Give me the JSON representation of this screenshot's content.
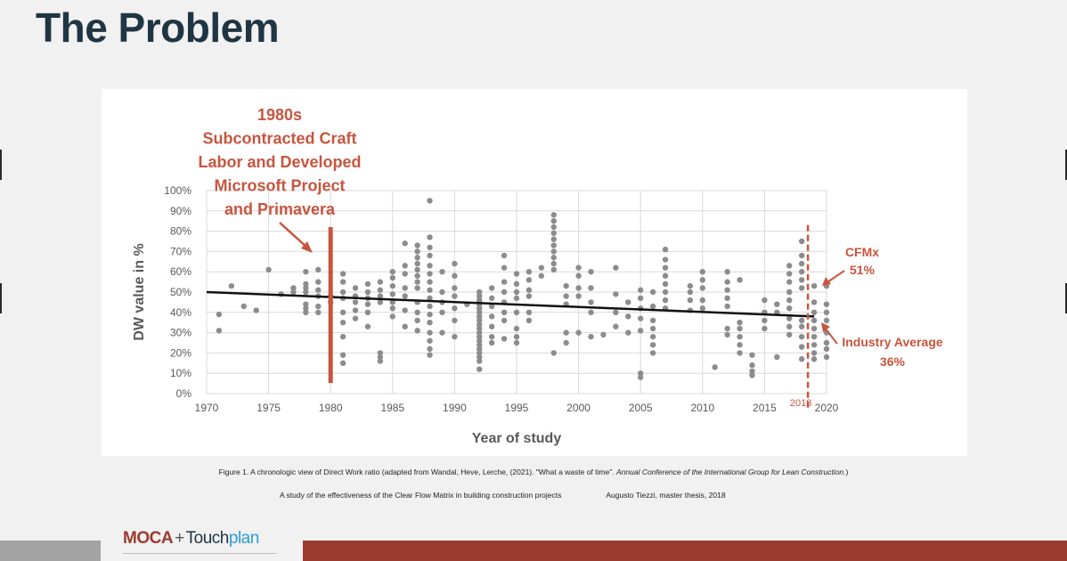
{
  "slide": {
    "title": "The Problem"
  },
  "chart_data": {
    "type": "scatter",
    "xlabel": "Year of study",
    "ylabel": "DW value in %",
    "xlim": [
      1970,
      2020
    ],
    "ylim": [
      0,
      100
    ],
    "x_ticks": [
      "1970",
      "1975",
      "1980",
      "1985",
      "1990",
      "1995",
      "2000",
      "2005",
      "2010",
      "2015",
      "2020"
    ],
    "y_ticks": [
      "0%",
      "10%",
      "20%",
      "30%",
      "40%",
      "50%",
      "60%",
      "70%",
      "80%",
      "90%",
      "100%"
    ],
    "grid": true,
    "colors": {
      "points": "#8c8c8c",
      "trend": "#111111",
      "annotation": "#c8553d"
    },
    "trendline": {
      "x": [
        1970,
        2019
      ],
      "y": [
        50,
        38
      ]
    },
    "vertical_lines": [
      {
        "x": 1980,
        "style": "solid"
      },
      {
        "x": 2018.5,
        "style": "dashed",
        "label": "2018"
      }
    ],
    "annotations": [
      {
        "lines": [
          "1980s",
          "Subcontracted Craft",
          "Labor and Developed",
          "Microsoft Project",
          "and Primavera"
        ]
      },
      {
        "lines": [
          "CFMx",
          "51%"
        ]
      },
      {
        "lines": [
          "Industry Average",
          "36%"
        ]
      }
    ],
    "points": [
      [
        1971,
        39
      ],
      [
        1971,
        31
      ],
      [
        1972,
        53
      ],
      [
        1973,
        43
      ],
      [
        1974,
        41
      ],
      [
        1975,
        61
      ],
      [
        1976,
        49
      ],
      [
        1977,
        50
      ],
      [
        1977,
        52
      ],
      [
        1978,
        60
      ],
      [
        1978,
        54
      ],
      [
        1978,
        52
      ],
      [
        1978,
        50
      ],
      [
        1978,
        44
      ],
      [
        1978,
        42
      ],
      [
        1978,
        40
      ],
      [
        1979,
        61
      ],
      [
        1979,
        55
      ],
      [
        1979,
        51
      ],
      [
        1979,
        48
      ],
      [
        1979,
        43
      ],
      [
        1979,
        40
      ],
      [
        1980,
        48
      ],
      [
        1980,
        45
      ],
      [
        1981,
        59
      ],
      [
        1981,
        55
      ],
      [
        1981,
        50
      ],
      [
        1981,
        47
      ],
      [
        1981,
        40
      ],
      [
        1981,
        35
      ],
      [
        1981,
        28
      ],
      [
        1981,
        19
      ],
      [
        1981,
        15
      ],
      [
        1982,
        52
      ],
      [
        1982,
        48
      ],
      [
        1982,
        45
      ],
      [
        1982,
        41
      ],
      [
        1982,
        37
      ],
      [
        1983,
        54
      ],
      [
        1983,
        50
      ],
      [
        1983,
        47
      ],
      [
        1983,
        44
      ],
      [
        1983,
        40
      ],
      [
        1983,
        33
      ],
      [
        1984,
        55
      ],
      [
        1984,
        51
      ],
      [
        1984,
        48
      ],
      [
        1984,
        45
      ],
      [
        1984,
        20
      ],
      [
        1984,
        18
      ],
      [
        1984,
        16
      ],
      [
        1985,
        60
      ],
      [
        1985,
        57
      ],
      [
        1985,
        53
      ],
      [
        1985,
        49
      ],
      [
        1985,
        45
      ],
      [
        1985,
        42
      ],
      [
        1985,
        38
      ],
      [
        1986,
        74
      ],
      [
        1986,
        63
      ],
      [
        1986,
        59
      ],
      [
        1986,
        52
      ],
      [
        1986,
        48
      ],
      [
        1986,
        41
      ],
      [
        1986,
        33
      ],
      [
        1987,
        73
      ],
      [
        1987,
        70
      ],
      [
        1987,
        67
      ],
      [
        1987,
        64
      ],
      [
        1987,
        61
      ],
      [
        1987,
        58
      ],
      [
        1987,
        55
      ],
      [
        1987,
        52
      ],
      [
        1987,
        45
      ],
      [
        1987,
        40
      ],
      [
        1987,
        36
      ],
      [
        1987,
        31
      ],
      [
        1988,
        95
      ],
      [
        1988,
        77
      ],
      [
        1988,
        72
      ],
      [
        1988,
        68
      ],
      [
        1988,
        63
      ],
      [
        1988,
        59
      ],
      [
        1988,
        55
      ],
      [
        1988,
        51
      ],
      [
        1988,
        47
      ],
      [
        1988,
        43
      ],
      [
        1988,
        39
      ],
      [
        1988,
        35
      ],
      [
        1988,
        30
      ],
      [
        1988,
        26
      ],
      [
        1988,
        22
      ],
      [
        1988,
        19
      ],
      [
        1989,
        60
      ],
      [
        1989,
        50
      ],
      [
        1989,
        45
      ],
      [
        1989,
        40
      ],
      [
        1989,
        30
      ],
      [
        1990,
        64
      ],
      [
        1990,
        58
      ],
      [
        1990,
        52
      ],
      [
        1990,
        48
      ],
      [
        1990,
        42
      ],
      [
        1990,
        36
      ],
      [
        1990,
        28
      ],
      [
        1991,
        44
      ],
      [
        1992,
        50
      ],
      [
        1992,
        48
      ],
      [
        1992,
        46
      ],
      [
        1992,
        44
      ],
      [
        1992,
        42
      ],
      [
        1992,
        40
      ],
      [
        1992,
        38
      ],
      [
        1992,
        36
      ],
      [
        1992,
        34
      ],
      [
        1992,
        32
      ],
      [
        1992,
        30
      ],
      [
        1992,
        28
      ],
      [
        1992,
        26
      ],
      [
        1992,
        24
      ],
      [
        1992,
        22
      ],
      [
        1992,
        20
      ],
      [
        1992,
        18
      ],
      [
        1992,
        16
      ],
      [
        1992,
        12
      ],
      [
        1993,
        52
      ],
      [
        1993,
        47
      ],
      [
        1993,
        43
      ],
      [
        1993,
        38
      ],
      [
        1993,
        33
      ],
      [
        1993,
        28
      ],
      [
        1993,
        25
      ],
      [
        1994,
        68
      ],
      [
        1994,
        62
      ],
      [
        1994,
        55
      ],
      [
        1994,
        50
      ],
      [
        1994,
        45
      ],
      [
        1994,
        40
      ],
      [
        1994,
        36
      ],
      [
        1994,
        27
      ],
      [
        1995,
        59
      ],
      [
        1995,
        54
      ],
      [
        1995,
        50
      ],
      [
        1995,
        47
      ],
      [
        1995,
        40
      ],
      [
        1995,
        32
      ],
      [
        1995,
        28
      ],
      [
        1995,
        25
      ],
      [
        1996,
        60
      ],
      [
        1996,
        56
      ],
      [
        1996,
        51
      ],
      [
        1996,
        48
      ],
      [
        1996,
        40
      ],
      [
        1996,
        36
      ],
      [
        1997,
        62
      ],
      [
        1997,
        58
      ],
      [
        1998,
        88
      ],
      [
        1998,
        85
      ],
      [
        1998,
        82
      ],
      [
        1998,
        79
      ],
      [
        1998,
        76
      ],
      [
        1998,
        73
      ],
      [
        1998,
        70
      ],
      [
        1998,
        67
      ],
      [
        1998,
        64
      ],
      [
        1998,
        61
      ],
      [
        1998,
        20
      ],
      [
        1999,
        53
      ],
      [
        1999,
        48
      ],
      [
        1999,
        44
      ],
      [
        1999,
        30
      ],
      [
        1999,
        25
      ],
      [
        2000,
        62
      ],
      [
        2000,
        58
      ],
      [
        2000,
        52
      ],
      [
        2000,
        48
      ],
      [
        2000,
        30
      ],
      [
        2001,
        60
      ],
      [
        2001,
        52
      ],
      [
        2001,
        45
      ],
      [
        2001,
        40
      ],
      [
        2001,
        28
      ],
      [
        2002,
        29
      ],
      [
        2003,
        62
      ],
      [
        2003,
        49
      ],
      [
        2003,
        40
      ],
      [
        2003,
        33
      ],
      [
        2004,
        45
      ],
      [
        2004,
        38
      ],
      [
        2004,
        30
      ],
      [
        2005,
        51
      ],
      [
        2005,
        47
      ],
      [
        2005,
        42
      ],
      [
        2005,
        37
      ],
      [
        2005,
        31
      ],
      [
        2005,
        10
      ],
      [
        2005,
        8
      ],
      [
        2006,
        50
      ],
      [
        2006,
        43
      ],
      [
        2006,
        36
      ],
      [
        2006,
        32
      ],
      [
        2006,
        28
      ],
      [
        2006,
        24
      ],
      [
        2006,
        20
      ],
      [
        2007,
        71
      ],
      [
        2007,
        66
      ],
      [
        2007,
        62
      ],
      [
        2007,
        58
      ],
      [
        2007,
        54
      ],
      [
        2007,
        50
      ],
      [
        2007,
        46
      ],
      [
        2007,
        42
      ],
      [
        2009,
        53
      ],
      [
        2009,
        50
      ],
      [
        2009,
        46
      ],
      [
        2009,
        41
      ],
      [
        2010,
        60
      ],
      [
        2010,
        56
      ],
      [
        2010,
        52
      ],
      [
        2010,
        46
      ],
      [
        2010,
        42
      ],
      [
        2011,
        13
      ],
      [
        2012,
        60
      ],
      [
        2012,
        55
      ],
      [
        2012,
        51
      ],
      [
        2012,
        47
      ],
      [
        2012,
        43
      ],
      [
        2012,
        32
      ],
      [
        2012,
        29
      ],
      [
        2013,
        56
      ],
      [
        2013,
        35
      ],
      [
        2013,
        32
      ],
      [
        2013,
        28
      ],
      [
        2013,
        24
      ],
      [
        2013,
        20
      ],
      [
        2014,
        19
      ],
      [
        2014,
        14
      ],
      [
        2014,
        11
      ],
      [
        2014,
        9
      ],
      [
        2015,
        46
      ],
      [
        2015,
        40
      ],
      [
        2015,
        36
      ],
      [
        2015,
        32
      ],
      [
        2016,
        44
      ],
      [
        2016,
        40
      ],
      [
        2016,
        18
      ],
      [
        2017,
        63
      ],
      [
        2017,
        59
      ],
      [
        2017,
        55
      ],
      [
        2017,
        50
      ],
      [
        2017,
        46
      ],
      [
        2017,
        42
      ],
      [
        2017,
        37
      ],
      [
        2017,
        33
      ],
      [
        2017,
        29
      ],
      [
        2018,
        75
      ],
      [
        2018,
        68
      ],
      [
        2018,
        64
      ],
      [
        2018,
        60
      ],
      [
        2018,
        56
      ],
      [
        2018,
        52
      ],
      [
        2018,
        36
      ],
      [
        2018,
        33
      ],
      [
        2018,
        28
      ],
      [
        2018,
        23
      ],
      [
        2018,
        17
      ],
      [
        2019,
        53
      ],
      [
        2019,
        45
      ],
      [
        2019,
        40
      ],
      [
        2019,
        36
      ],
      [
        2019,
        32
      ],
      [
        2019,
        28
      ],
      [
        2019,
        24
      ],
      [
        2019,
        20
      ],
      [
        2019,
        17
      ],
      [
        2020,
        53
      ],
      [
        2020,
        44
      ],
      [
        2020,
        40
      ],
      [
        2020,
        36
      ],
      [
        2020,
        30
      ],
      [
        2020,
        25
      ],
      [
        2020,
        22
      ],
      [
        2020,
        18
      ]
    ]
  },
  "captions": {
    "figure_prefix": "Figure 1. A chronologic view of Direct Work ratio (adapted from Wandal, Heve, Lerche, (2021). \"What a waste of time\". ",
    "figure_italic": "Annual Conference of the International Group for Lean Construction.",
    "figure_suffix": ")",
    "study": "A study of the effectiveness of the Clear Flow Matrix in building construction projects",
    "author": "Augusto Tiezzi, master thesis, 2018"
  },
  "footer": {
    "logo_moca": "MOCA",
    "logo_plus": "+",
    "logo_touch": "Touch",
    "logo_plan": "plan"
  }
}
